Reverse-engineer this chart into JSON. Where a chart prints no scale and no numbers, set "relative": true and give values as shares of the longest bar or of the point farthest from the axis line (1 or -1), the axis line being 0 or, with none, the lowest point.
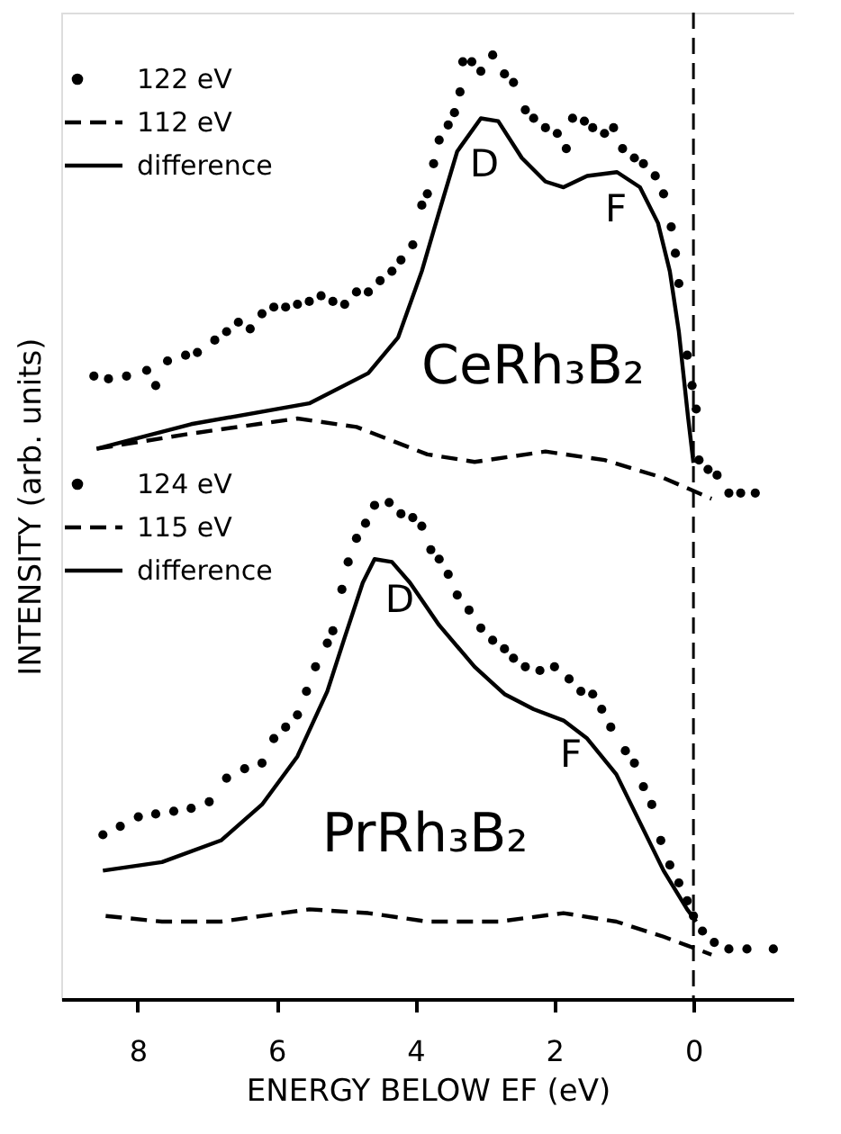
{
  "chart_data": {
    "type": "line",
    "relative": true,
    "xlabel": "ENERGY BELOW EF (eV)",
    "ylabel": "INTENSITY (arb. units)",
    "xlim": [
      9.1,
      -1.45
    ],
    "xticks": [
      8,
      6,
      4,
      2,
      0
    ],
    "tick_labels": "x",
    "grid": false,
    "legend": "top left",
    "ref_lines": [
      {
        "axis": "x",
        "value": 0,
        "line_style": "dashed",
        "color": "#000000"
      }
    ],
    "annotations": [
      "D",
      "F",
      "CeRh₃B₂",
      "D",
      "F",
      "PrRh₃B₂"
    ],
    "series": [
      {
        "name": "122 eV",
        "type": "scatter",
        "color": "#000000",
        "x": [
          8.63,
          8.42,
          8.16,
          7.87,
          7.74,
          7.57,
          7.31,
          7.14,
          6.89,
          6.72,
          6.55,
          6.38,
          6.21,
          6.04,
          5.87,
          5.7,
          5.53,
          5.36,
          5.19,
          5.02,
          4.85,
          4.68,
          4.51,
          4.34,
          4.21,
          4.04,
          3.91,
          3.83,
          3.74,
          3.66,
          3.53,
          3.44,
          3.36,
          3.32,
          3.19,
          3.06,
          2.89,
          2.72,
          2.59,
          2.42,
          2.3,
          2.13,
          1.96,
          1.83,
          1.74,
          1.57,
          1.45,
          1.28,
          1.15,
          1.02,
          0.85,
          0.72,
          0.55,
          0.43,
          0.32,
          0.26,
          0.21,
          0.09,
          0.02,
          -0.04,
          -0.08,
          -0.21,
          -0.34,
          -0.51,
          -0.68,
          -0.89
        ],
        "values": [
          0.66,
          0.657,
          0.66,
          0.666,
          0.65,
          0.676,
          0.682,
          0.685,
          0.698,
          0.707,
          0.717,
          0.71,
          0.726,
          0.733,
          0.733,
          0.736,
          0.739,
          0.745,
          0.739,
          0.736,
          0.749,
          0.749,
          0.761,
          0.771,
          0.783,
          0.799,
          0.841,
          0.853,
          0.885,
          0.91,
          0.926,
          0.939,
          0.961,
          0.993,
          0.993,
          0.983,
          1.0,
          0.98,
          0.971,
          0.942,
          0.933,
          0.923,
          0.917,
          0.901,
          0.933,
          0.93,
          0.923,
          0.917,
          0.923,
          0.901,
          0.891,
          0.885,
          0.872,
          0.853,
          0.818,
          0.79,
          0.758,
          0.682,
          0.65,
          0.625,
          0.571,
          0.561,
          0.555,
          0.536,
          0.536,
          0.536
        ]
      },
      {
        "name": "112 eV",
        "line_style": "dashed",
        "color": "#000000",
        "x": [
          8.59,
          7.23,
          5.7,
          4.85,
          3.83,
          3.15,
          2.13,
          1.28,
          0.43,
          -0.26
        ],
        "values": [
          0.583,
          0.599,
          0.615,
          0.606,
          0.577,
          0.569,
          0.58,
          0.571,
          0.552,
          0.53
        ]
      },
      {
        "name": "difference",
        "line_style": "solid",
        "color": "#000000",
        "x": [
          8.59,
          7.23,
          5.53,
          4.68,
          4.25,
          3.91,
          3.66,
          3.4,
          3.06,
          2.81,
          2.47,
          2.13,
          1.87,
          1.53,
          1.1,
          0.77,
          0.51,
          0.34,
          0.21,
          0.08,
          0.0
        ],
        "values": [
          0.583,
          0.609,
          0.631,
          0.663,
          0.701,
          0.771,
          0.834,
          0.898,
          0.933,
          0.93,
          0.891,
          0.866,
          0.86,
          0.872,
          0.876,
          0.86,
          0.822,
          0.771,
          0.707,
          0.618,
          0.568
        ]
      },
      {
        "name": "124 eV",
        "type": "scatter",
        "color": "#000000",
        "x": [
          8.5,
          8.25,
          7.99,
          7.74,
          7.48,
          7.23,
          6.97,
          6.72,
          6.46,
          6.21,
          6.04,
          5.87,
          5.7,
          5.57,
          5.44,
          5.27,
          5.19,
          5.06,
          4.97,
          4.85,
          4.72,
          4.59,
          4.38,
          4.21,
          4.04,
          3.91,
          3.78,
          3.66,
          3.53,
          3.4,
          3.23,
          3.06,
          2.89,
          2.72,
          2.59,
          2.42,
          2.21,
          2.0,
          1.79,
          1.62,
          1.45,
          1.32,
          1.19,
          0.98,
          0.85,
          0.72,
          0.6,
          0.47,
          0.34,
          0.21,
          0.09,
          0.0,
          -0.13,
          -0.3,
          -0.51,
          -0.77,
          -1.15
        ],
        "values": [
          0.174,
          0.183,
          0.193,
          0.196,
          0.199,
          0.202,
          0.209,
          0.234,
          0.244,
          0.25,
          0.276,
          0.288,
          0.301,
          0.326,
          0.352,
          0.377,
          0.39,
          0.434,
          0.463,
          0.488,
          0.504,
          0.523,
          0.526,
          0.514,
          0.51,
          0.501,
          0.476,
          0.466,
          0.45,
          0.428,
          0.412,
          0.393,
          0.38,
          0.371,
          0.361,
          0.352,
          0.348,
          0.352,
          0.339,
          0.326,
          0.323,
          0.307,
          0.288,
          0.263,
          0.25,
          0.225,
          0.206,
          0.168,
          0.142,
          0.123,
          0.104,
          0.088,
          0.072,
          0.06,
          0.053,
          0.053,
          0.053
        ]
      },
      {
        "name": "115 eV",
        "line_style": "dashed",
        "color": "#000000",
        "x": [
          8.46,
          7.65,
          6.8,
          5.53,
          4.68,
          3.83,
          2.81,
          1.87,
          1.11,
          0.43,
          -0.26
        ],
        "values": [
          0.088,
          0.082,
          0.082,
          0.095,
          0.091,
          0.082,
          0.082,
          0.091,
          0.082,
          0.066,
          0.047
        ]
      },
      {
        "name": "difference",
        "line_style": "solid",
        "color": "#000000",
        "x": [
          8.5,
          7.65,
          6.8,
          6.21,
          5.7,
          5.27,
          5.02,
          4.76,
          4.59,
          4.34,
          4.08,
          3.66,
          3.15,
          2.72,
          2.3,
          1.87,
          1.53,
          1.11,
          0.77,
          0.43,
          0.09,
          -0.04
        ],
        "values": [
          0.136,
          0.145,
          0.168,
          0.206,
          0.257,
          0.326,
          0.383,
          0.441,
          0.466,
          0.463,
          0.441,
          0.396,
          0.352,
          0.323,
          0.307,
          0.295,
          0.276,
          0.238,
          0.187,
          0.136,
          0.095,
          0.082
        ]
      }
    ]
  }
}
